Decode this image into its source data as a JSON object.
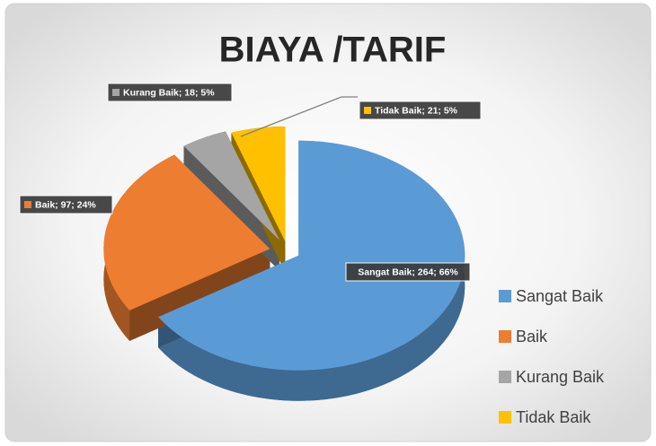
{
  "chart_data": {
    "type": "pie",
    "title": "BIAYA /TARIF",
    "categories": [
      "Sangat Baik",
      "Baik",
      "Kurang Baik",
      "Tidak Baik"
    ],
    "values": [
      264,
      97,
      18,
      21
    ],
    "value_labels": [
      "Sangat Baik; 264; 66%",
      "Baik; 97; 24%",
      "Kurang Baik; 18; 5%",
      "Tidak Baik; 21; 5%"
    ],
    "colors": [
      "#5b9bd5",
      "#ed7d31",
      "#a5a5a5",
      "#ffc000"
    ],
    "legend": "right"
  }
}
